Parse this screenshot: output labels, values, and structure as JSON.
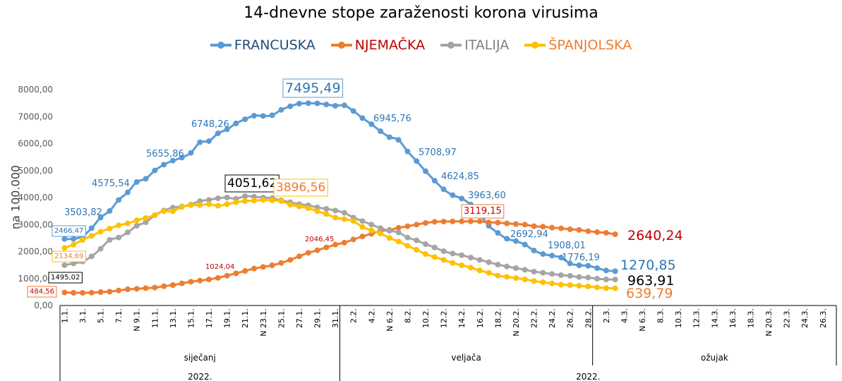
{
  "chart_data": {
    "type": "line",
    "title": "14-dnevne stope zaraženosti korona virusima",
    "ylabel": "na 100.000",
    "xlabel": "",
    "ylim": [
      0,
      8000
    ],
    "y_ticks": [
      "0,00",
      "1000,00",
      "2000,00",
      "3000,00",
      "4000,00",
      "5000,00",
      "6000,00",
      "7000,00",
      "8000,00"
    ],
    "grid": false,
    "legend_position": "top",
    "x_range": [
      "1.1.2022",
      "27.3.2022"
    ],
    "data_range": [
      "1.1.2022",
      "3.3.2022"
    ],
    "x_step": "1 day",
    "x_tick_labels": [
      "1.1.",
      "3.1.",
      "5.1.",
      "7.1.",
      "N 9.1.",
      "11.1.",
      "13.1.",
      "15.1.",
      "17.1.",
      "19.1.",
      "21.1.",
      "N 23.1.",
      "25.1.",
      "27.1.",
      "29.1.",
      "31.1.",
      "2.2.",
      "4.2.",
      "N 6.2.",
      "8.2.",
      "10.2.",
      "12.2.",
      "14.2.",
      "16.2.",
      "18.2.",
      "N 20.2.",
      "22.2.",
      "24.2.",
      "26.2.",
      "28.2.",
      "2.3.",
      "4.3.",
      "N 6.3.",
      "8.3.",
      "10.3.",
      "12.3.",
      "14.3.",
      "16.3.",
      "18.3.",
      "N 20.3.",
      "22.3.",
      "24.3.",
      "26.3."
    ],
    "months": [
      {
        "label": "siječanj",
        "days": 31
      },
      {
        "label": "veljača",
        "days": 28
      },
      {
        "label": "ožujak",
        "days": 27
      }
    ],
    "years": [
      {
        "label": "2022.",
        "days": 31
      },
      {
        "label": "2022.",
        "days": 55
      }
    ],
    "series": [
      {
        "name": "FRANCUSKA",
        "color": "#5B9BD5",
        "legend_color": "#1F4E79",
        "values": [
          2466.47,
          2470,
          2560,
          2867,
          3259,
          3503.82,
          3913,
          4192,
          4575.54,
          4697,
          5002,
          5220,
          5367,
          5482,
          5655.86,
          6048,
          6092,
          6379,
          6527,
          6748.26,
          6902,
          7033,
          7024,
          7050,
          7250,
          7381,
          7480,
          7495.49,
          7490,
          7450,
          7400,
          7417,
          7207,
          6945.76,
          6719,
          6458,
          6240,
          6136,
          5708.97,
          5351,
          4976,
          4624.85,
          4305,
          4087,
          3963.6,
          3739,
          3390,
          2954,
          2692.94,
          2475,
          2387,
          2257,
          2039,
          1908.01,
          1850,
          1776.19,
          1560,
          1490,
          1473,
          1386,
          1299,
          1270.85
        ]
      },
      {
        "name": "NJEMAČKA",
        "color": "#ED7D31",
        "legend_color": "#C00000",
        "values": [
          484.56,
          471,
          471,
          475,
          497,
          513,
          557,
          601,
          619,
          645,
          663,
          715,
          758,
          819,
          880,
          924,
          967,
          1024.04,
          1106,
          1193,
          1281,
          1368,
          1429,
          1490,
          1577,
          1690,
          1821,
          1952,
          2046.45,
          2151,
          2257,
          2330,
          2449,
          2560,
          2660,
          2750,
          2800,
          2880,
          2937,
          2998,
          3059,
          3102,
          3110,
          3115,
          3117,
          3119,
          3119.15,
          3080,
          3070,
          3042,
          3020,
          2998,
          2937,
          2920,
          2884,
          2860,
          2824,
          2800,
          2754,
          2720,
          2694,
          2640.24
        ]
      },
      {
        "name": "ITALIJA",
        "color": "#A5A5A5",
        "legend_color": "#7F7F7F",
        "values": [
          1495.02,
          1560,
          1629,
          1821,
          2100,
          2431,
          2518,
          2710,
          2954,
          3085,
          3346,
          3521,
          3626,
          3670,
          3739,
          3869,
          3913,
          3974,
          4000,
          3957,
          4051.62,
          4030,
          4000,
          3974,
          3895,
          3826,
          3756,
          3713,
          3634,
          3582,
          3521,
          3434,
          3259,
          3128,
          3000,
          2867,
          2770,
          2710,
          2518,
          2414,
          2274,
          2151,
          2013,
          1926,
          1865,
          1778,
          1691,
          1604,
          1516,
          1447,
          1386,
          1325,
          1255,
          1212,
          1168,
          1124,
          1098,
          1054,
          1037,
          993,
          967,
          963.91
        ]
      },
      {
        "name": "ŠPANJOLSKA",
        "color": "#FFC000",
        "legend_color": "#ED7D31",
        "values": [
          2134.69,
          2257,
          2431,
          2580,
          2736,
          2850,
          2972,
          3041,
          3155,
          3242,
          3346,
          3495,
          3495,
          3652,
          3721,
          3721,
          3756,
          3695,
          3756,
          3826,
          3869,
          3887,
          3913,
          3896.56,
          3869,
          3739,
          3670,
          3608,
          3495,
          3390,
          3259,
          3200,
          3128,
          2910,
          2780,
          2667,
          2502,
          2370,
          2214,
          2064,
          1908,
          1795,
          1691,
          1577,
          1490,
          1403,
          1299,
          1212,
          1107,
          1063,
          1019,
          967,
          906,
          862,
          819,
          775,
          758,
          732,
          706,
          671,
          645,
          639.79
        ]
      }
    ],
    "annotations": [
      {
        "series": 0,
        "date": "1.1.",
        "text": "2466,47",
        "color": "#2E75B6",
        "boxed": true
      },
      {
        "series": 0,
        "date": "6.1.",
        "text": "3503,82",
        "color": "#2E75B6",
        "boxed": false
      },
      {
        "series": 0,
        "date": "9.1.",
        "text": "4575,54",
        "color": "#2E75B6",
        "boxed": false
      },
      {
        "series": 0,
        "date": "15.1.",
        "text": "5655,86",
        "color": "#2E75B6",
        "boxed": false
      },
      {
        "series": 0,
        "date": "20.1.",
        "text": "6748,26",
        "color": "#2E75B6",
        "boxed": false
      },
      {
        "series": 0,
        "date": "28.1.",
        "text": "7495,49",
        "color": "#2E75B6",
        "boxed": true
      },
      {
        "series": 0,
        "date": "3.2.",
        "text": "6945,76",
        "color": "#2E75B6",
        "boxed": false
      },
      {
        "series": 0,
        "date": "8.2.",
        "text": "5708,97",
        "color": "#2E75B6",
        "boxed": false
      },
      {
        "series": 0,
        "date": "11.2.",
        "text": "4624,85",
        "color": "#2E75B6",
        "boxed": false
      },
      {
        "series": 0,
        "date": "14.2.",
        "text": "3963,60",
        "color": "#2E75B6",
        "boxed": false
      },
      {
        "series": 0,
        "date": "18.2.",
        "text": "2692,94",
        "color": "#2E75B6",
        "boxed": false
      },
      {
        "series": 0,
        "date": "23.2.",
        "text": "1908,01",
        "color": "#2E75B6",
        "boxed": false
      },
      {
        "series": 0,
        "date": "25.2.",
        "text": "1776,19",
        "color": "#2E75B6",
        "boxed": false
      },
      {
        "series": 0,
        "date": "3.3.",
        "text": "1270,85",
        "color": "#2E75B6",
        "boxed": false
      },
      {
        "series": 1,
        "date": "1.1.",
        "text": "484,56",
        "color": "#C00000",
        "boxed": true
      },
      {
        "series": 1,
        "date": "18.1.",
        "text": "1024,04",
        "color": "#C00000",
        "boxed": false
      },
      {
        "series": 1,
        "date": "29.1.",
        "text": "2046,45",
        "color": "#C00000",
        "boxed": false
      },
      {
        "series": 1,
        "date": "16.2.",
        "text": "3119,15",
        "color": "#C00000",
        "boxed": true
      },
      {
        "series": 1,
        "date": "3.3.",
        "text": "2640,24",
        "color": "#C00000",
        "boxed": false
      },
      {
        "series": 2,
        "date": "1.1.",
        "text": "1495,02",
        "color": "#000000",
        "boxed": true
      },
      {
        "series": 2,
        "date": "21.1.",
        "text": "4051,62",
        "color": "#000000",
        "boxed": true
      },
      {
        "series": 2,
        "date": "3.3.",
        "text": "963,91",
        "color": "#000000",
        "boxed": false
      },
      {
        "series": 3,
        "date": "1.1.",
        "text": "2134,69",
        "color": "#ED7D31",
        "boxed": true
      },
      {
        "series": 3,
        "date": "24.1.",
        "text": "3896,56",
        "color": "#ED7D31",
        "boxed": true
      },
      {
        "series": 3,
        "date": "3.3.",
        "text": "639,79",
        "color": "#ED7D31",
        "boxed": false
      }
    ]
  }
}
